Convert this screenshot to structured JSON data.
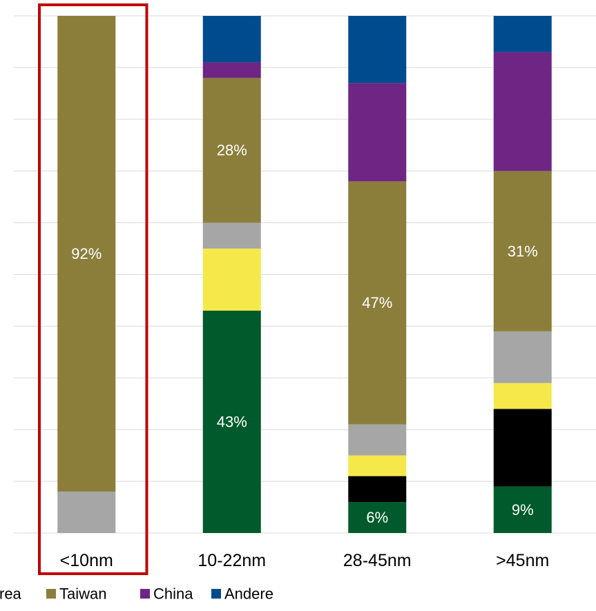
{
  "chart_data": {
    "type": "bar",
    "stacked": true,
    "grid": true,
    "legend_position": "bottom",
    "categories": [
      "<10nm",
      "10-22nm",
      "28-45nm",
      ">45nm"
    ],
    "ylim": [
      0,
      100
    ],
    "highlighted_category": "<10nm",
    "highlight_color": "#C00000",
    "series": [
      {
        "key": "s1",
        "color": "#005A2B",
        "values": [
          0,
          43,
          6,
          9
        ]
      },
      {
        "key": "s2",
        "color": "#000000",
        "values": [
          0,
          0,
          5,
          15
        ]
      },
      {
        "key": "s3",
        "color": "#F5E84A",
        "values": [
          0,
          12,
          4,
          5
        ]
      },
      {
        "key": "s4",
        "color": "#A6A6A6",
        "values": [
          8,
          5,
          6,
          10
        ]
      },
      {
        "key": "taiwan",
        "name": "Taiwan",
        "color": "#8B7E3B",
        "values": [
          92,
          28,
          47,
          31
        ]
      },
      {
        "key": "china",
        "name": "China",
        "color": "#6E2584",
        "values": [
          0,
          3,
          19,
          23
        ]
      },
      {
        "key": "andere",
        "name": "Andere",
        "color": "#004B8D",
        "values": [
          0,
          9,
          13,
          7
        ]
      }
    ],
    "data_labels": [
      {
        "category": "<10nm",
        "series": "taiwan",
        "text": "92%"
      },
      {
        "category": "10-22nm",
        "series": "taiwan",
        "text": "28%"
      },
      {
        "category": "10-22nm",
        "series": "s1",
        "text": "43%"
      },
      {
        "category": "28-45nm",
        "series": "taiwan",
        "text": "47%"
      },
      {
        "category": "28-45nm",
        "series": "s1",
        "text": "6%"
      },
      {
        "category": ">45nm",
        "series": "taiwan",
        "text": "31%"
      },
      {
        "category": ">45nm",
        "series": "s1",
        "text": "9%"
      }
    ],
    "legend": [
      {
        "label": "rea",
        "color": null
      },
      {
        "label": "Taiwan",
        "color": "#8B7E3B"
      },
      {
        "label": "China",
        "color": "#6E2584"
      },
      {
        "label": "Andere",
        "color": "#004B8D"
      }
    ]
  }
}
